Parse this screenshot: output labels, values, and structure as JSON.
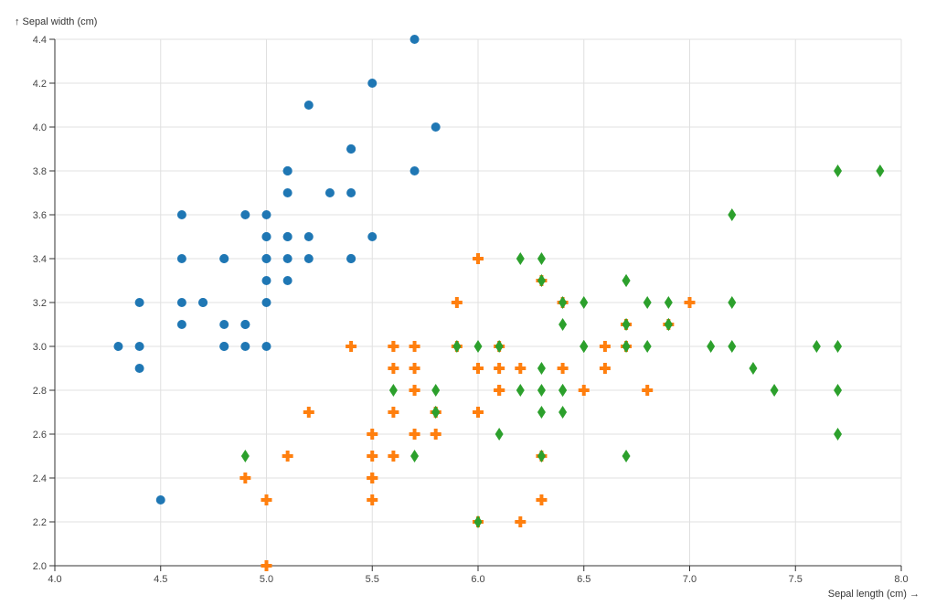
{
  "chart_data": {
    "type": "scatter",
    "xlabel": "Sepal length (cm) →",
    "ylabel": "↑ Sepal width (cm)",
    "xlim": [
      4.0,
      8.0
    ],
    "ylim": [
      2.0,
      4.4
    ],
    "xticks": [
      "4.0",
      "4.5",
      "5.0",
      "5.5",
      "6.0",
      "6.5",
      "7.0",
      "7.5",
      "8.0"
    ],
    "yticks": [
      "2.0",
      "2.2",
      "2.4",
      "2.6",
      "2.8",
      "3.0",
      "3.2",
      "3.4",
      "3.6",
      "3.8",
      "4.0",
      "4.2",
      "4.4"
    ],
    "grid": true,
    "series": [
      {
        "color": "#1f77b4",
        "marker": "circle",
        "points": [
          [
            5.1,
            3.5
          ],
          [
            4.9,
            3.0
          ],
          [
            4.7,
            3.2
          ],
          [
            4.6,
            3.1
          ],
          [
            5.0,
            3.6
          ],
          [
            5.4,
            3.9
          ],
          [
            4.6,
            3.4
          ],
          [
            5.0,
            3.4
          ],
          [
            4.4,
            2.9
          ],
          [
            4.9,
            3.1
          ],
          [
            5.4,
            3.7
          ],
          [
            4.8,
            3.4
          ],
          [
            4.8,
            3.0
          ],
          [
            4.3,
            3.0
          ],
          [
            5.8,
            4.0
          ],
          [
            5.7,
            4.4
          ],
          [
            5.4,
            3.9
          ],
          [
            5.1,
            3.5
          ],
          [
            5.7,
            3.8
          ],
          [
            5.1,
            3.8
          ],
          [
            5.4,
            3.4
          ],
          [
            5.1,
            3.7
          ],
          [
            4.6,
            3.6
          ],
          [
            5.1,
            3.3
          ],
          [
            4.8,
            3.4
          ],
          [
            5.0,
            3.0
          ],
          [
            5.0,
            3.4
          ],
          [
            5.2,
            3.5
          ],
          [
            5.2,
            3.4
          ],
          [
            4.7,
            3.2
          ],
          [
            4.8,
            3.1
          ],
          [
            5.4,
            3.4
          ],
          [
            5.2,
            4.1
          ],
          [
            5.5,
            4.2
          ],
          [
            4.9,
            3.1
          ],
          [
            5.0,
            3.2
          ],
          [
            5.5,
            3.5
          ],
          [
            4.9,
            3.6
          ],
          [
            4.4,
            3.0
          ],
          [
            5.1,
            3.4
          ],
          [
            5.0,
            3.5
          ],
          [
            4.5,
            2.3
          ],
          [
            4.4,
            3.2
          ],
          [
            5.0,
            3.5
          ],
          [
            5.1,
            3.8
          ],
          [
            4.8,
            3.0
          ],
          [
            5.1,
            3.8
          ],
          [
            4.6,
            3.2
          ],
          [
            5.3,
            3.7
          ],
          [
            5.0,
            3.3
          ]
        ]
      },
      {
        "color": "#ff7f0e",
        "marker": "cross",
        "points": [
          [
            7.0,
            3.2
          ],
          [
            6.4,
            3.2
          ],
          [
            6.9,
            3.1
          ],
          [
            5.5,
            2.3
          ],
          [
            6.5,
            2.8
          ],
          [
            5.7,
            2.8
          ],
          [
            6.3,
            3.3
          ],
          [
            4.9,
            2.4
          ],
          [
            6.6,
            2.9
          ],
          [
            5.2,
            2.7
          ],
          [
            5.0,
            2.0
          ],
          [
            5.9,
            3.0
          ],
          [
            6.0,
            2.2
          ],
          [
            6.1,
            2.9
          ],
          [
            5.6,
            2.9
          ],
          [
            6.7,
            3.1
          ],
          [
            5.6,
            3.0
          ],
          [
            5.8,
            2.7
          ],
          [
            6.2,
            2.2
          ],
          [
            5.6,
            2.5
          ],
          [
            5.9,
            3.2
          ],
          [
            6.1,
            2.8
          ],
          [
            6.3,
            2.5
          ],
          [
            6.1,
            2.8
          ],
          [
            6.4,
            2.9
          ],
          [
            6.6,
            3.0
          ],
          [
            6.8,
            2.8
          ],
          [
            6.7,
            3.0
          ],
          [
            6.0,
            2.9
          ],
          [
            5.7,
            2.6
          ],
          [
            5.5,
            2.4
          ],
          [
            5.5,
            2.4
          ],
          [
            5.8,
            2.7
          ],
          [
            6.0,
            2.7
          ],
          [
            5.4,
            3.0
          ],
          [
            6.0,
            3.4
          ],
          [
            6.7,
            3.1
          ],
          [
            6.3,
            2.3
          ],
          [
            5.6,
            3.0
          ],
          [
            5.5,
            2.5
          ],
          [
            5.5,
            2.6
          ],
          [
            6.1,
            3.0
          ],
          [
            5.8,
            2.6
          ],
          [
            5.0,
            2.3
          ],
          [
            5.6,
            2.7
          ],
          [
            5.7,
            3.0
          ],
          [
            5.7,
            2.9
          ],
          [
            6.2,
            2.9
          ],
          [
            5.1,
            2.5
          ],
          [
            5.7,
            2.8
          ]
        ]
      },
      {
        "color": "#2ca02c",
        "marker": "diamond",
        "points": [
          [
            6.3,
            3.3
          ],
          [
            5.8,
            2.7
          ],
          [
            7.1,
            3.0
          ],
          [
            6.3,
            2.9
          ],
          [
            6.5,
            3.0
          ],
          [
            7.6,
            3.0
          ],
          [
            4.9,
            2.5
          ],
          [
            7.3,
            2.9
          ],
          [
            6.7,
            2.5
          ],
          [
            7.2,
            3.6
          ],
          [
            6.5,
            3.2
          ],
          [
            6.4,
            2.7
          ],
          [
            6.8,
            3.0
          ],
          [
            5.7,
            2.5
          ],
          [
            5.8,
            2.8
          ],
          [
            6.4,
            3.2
          ],
          [
            6.5,
            3.0
          ],
          [
            7.7,
            3.8
          ],
          [
            7.7,
            2.6
          ],
          [
            6.0,
            2.2
          ],
          [
            6.9,
            3.2
          ],
          [
            5.6,
            2.8
          ],
          [
            7.7,
            2.8
          ],
          [
            6.3,
            2.7
          ],
          [
            6.7,
            3.3
          ],
          [
            7.2,
            3.2
          ],
          [
            6.2,
            2.8
          ],
          [
            6.1,
            3.0
          ],
          [
            6.4,
            2.8
          ],
          [
            7.2,
            3.0
          ],
          [
            7.4,
            2.8
          ],
          [
            7.9,
            3.8
          ],
          [
            6.4,
            2.8
          ],
          [
            6.3,
            2.8
          ],
          [
            6.1,
            2.6
          ],
          [
            7.7,
            3.0
          ],
          [
            6.3,
            3.4
          ],
          [
            6.4,
            3.1
          ],
          [
            6.0,
            3.0
          ],
          [
            6.9,
            3.1
          ],
          [
            6.7,
            3.1
          ],
          [
            6.9,
            3.1
          ],
          [
            5.8,
            2.7
          ],
          [
            6.8,
            3.2
          ],
          [
            6.7,
            3.3
          ],
          [
            6.7,
            3.0
          ],
          [
            6.3,
            2.5
          ],
          [
            6.5,
            3.0
          ],
          [
            6.2,
            3.4
          ],
          [
            5.9,
            3.0
          ]
        ]
      }
    ]
  }
}
